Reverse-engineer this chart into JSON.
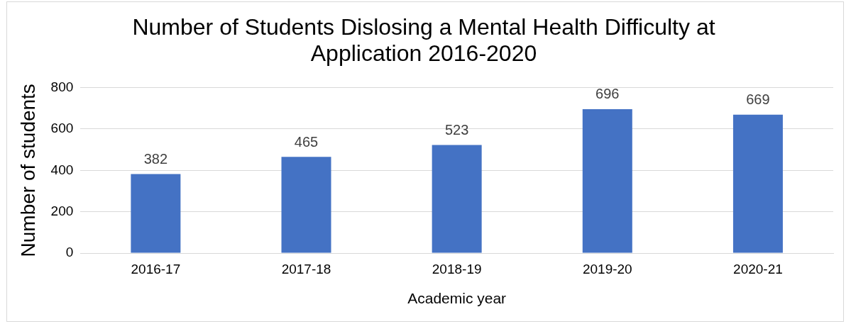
{
  "chart_data": {
    "type": "bar",
    "title": "Number of Students Dislosing a Mental Health Difficulty at Application 2016-2020",
    "xlabel": "Academic year",
    "ylabel": "Number of students",
    "categories": [
      "2016-17",
      "2017-18",
      "2018-19",
      "2019-20",
      "2020-21"
    ],
    "values": [
      382,
      465,
      523,
      696,
      669
    ],
    "color": "#4472c4",
    "ylim": [
      0,
      800
    ],
    "yticks": [
      0,
      200,
      400,
      600,
      800
    ],
    "grid": "y",
    "data_labels": true,
    "legend": false
  }
}
